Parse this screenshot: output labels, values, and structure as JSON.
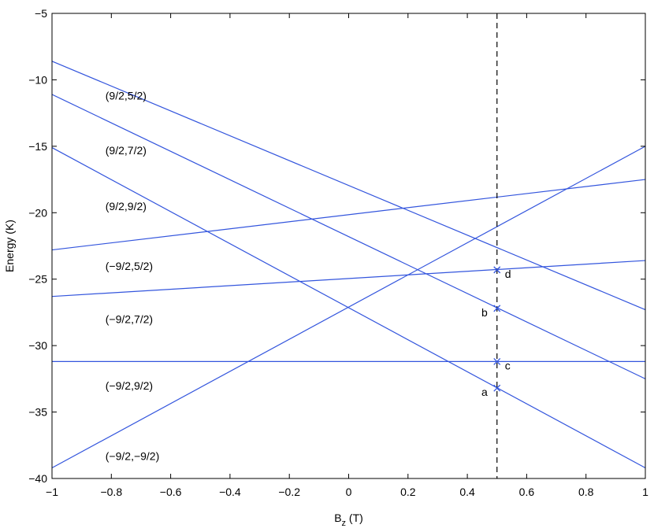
{
  "chart_data": {
    "type": "line",
    "xlabel": "B",
    "xlabel_sub": "z",
    "xlabel_unit": " (T)",
    "ylabel": "Energy (K)",
    "xlim": [
      -1,
      1
    ],
    "ylim": [
      -40,
      -5
    ],
    "xticks": [
      -1,
      -0.8,
      -0.6,
      -0.4,
      -0.2,
      0,
      0.2,
      0.4,
      0.6,
      0.8,
      1
    ],
    "xtick_labels": [
      "−1",
      "−0.8",
      "−0.6",
      "−0.4",
      "−0.2",
      "0",
      "0.2",
      "0.4",
      "0.6",
      "0.8",
      "1"
    ],
    "yticks": [
      -40,
      -35,
      -30,
      -25,
      -20,
      -15,
      -10,
      -5
    ],
    "ytick_labels": [
      "−40",
      "−35",
      "−30",
      "−25",
      "−20",
      "−15",
      "−10",
      "−5"
    ],
    "grid": false,
    "line_color": "#3355dd",
    "series": [
      {
        "x": [
          -1,
          1
        ],
        "y": [
          -8.6,
          -27.3
        ]
      },
      {
        "x": [
          -1,
          1
        ],
        "y": [
          -11.1,
          -32.5
        ]
      },
      {
        "x": [
          -1,
          1
        ],
        "y": [
          -15.1,
          -39.2
        ]
      },
      {
        "x": [
          -1,
          1
        ],
        "y": [
          -22.8,
          -17.5
        ]
      },
      {
        "x": [
          -1,
          1
        ],
        "y": [
          -26.3,
          -23.6
        ]
      },
      {
        "x": [
          -1,
          1
        ],
        "y": [
          -31.2,
          -31.2
        ]
      },
      {
        "x": [
          -1,
          1
        ],
        "y": [
          -39.2,
          -15.0
        ]
      }
    ],
    "vline": {
      "x": 0.5,
      "style": "dashed",
      "color": "#000000"
    },
    "markers": [
      {
        "x": 0.5,
        "y": -24.3,
        "label": "d",
        "side": "right"
      },
      {
        "x": 0.5,
        "y": -27.2,
        "label": "b",
        "side": "left"
      },
      {
        "x": 0.5,
        "y": -31.2,
        "label": "c",
        "side": "right"
      },
      {
        "x": 0.5,
        "y": -33.2,
        "label": "a",
        "side": "left"
      }
    ],
    "annotations": [
      {
        "text": "(9/2,5/2)",
        "x": -0.82,
        "y": -11.2
      },
      {
        "text": "(9/2,7/2)",
        "x": -0.82,
        "y": -15.3
      },
      {
        "text": "(9/2,9/2)",
        "x": -0.82,
        "y": -19.5
      },
      {
        "text": "(−9/2,5/2)",
        "x": -0.82,
        "y": -24.0
      },
      {
        "text": "(−9/2,7/2)",
        "x": -0.82,
        "y": -28.0
      },
      {
        "text": "(−9/2,9/2)",
        "x": -0.82,
        "y": -33.0
      },
      {
        "text": "(−9/2,−9/2)",
        "x": -0.82,
        "y": -38.3
      }
    ]
  }
}
